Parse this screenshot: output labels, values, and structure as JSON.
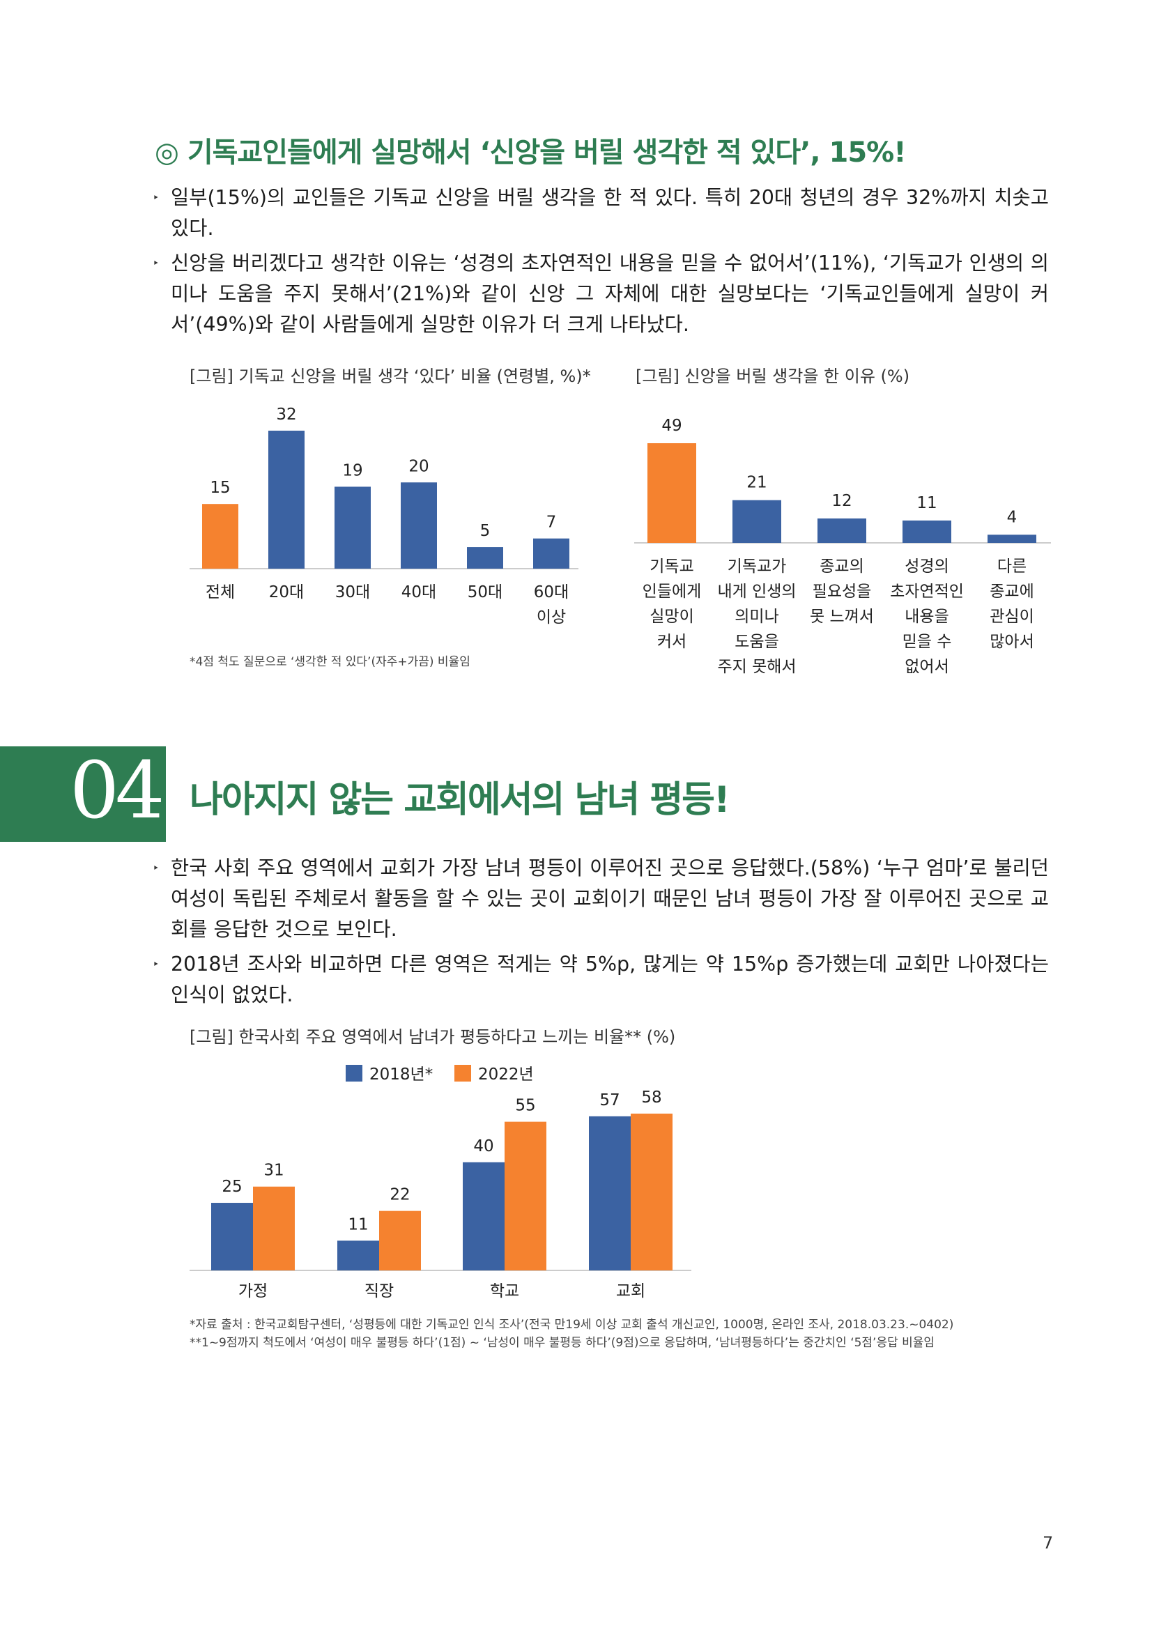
{
  "section3": {
    "heading": "◎ 기독교인들에게 실망해서 ‘신앙을 버릴 생각한 적 있다’, 15%!",
    "bullets": [
      "일부(15%)의 교인들은 기독교 신앙을 버릴 생각을 한 적 있다. 특히 20대 청년의 경우 32%까지 치솟고 있다.",
      "신앙을 버리겠다고 생각한 이유는 ‘성경의 초자연적인 내용을 믿을 수 없어서’(11%), ‘기독교가 인생의 의미나 도움을 주지 못해서’(21%)와 같이 신앙 그 자체에 대한 실망보다는 ‘기독교인들에게 실망이 커서’(49%)와 같이 사람들에게 실망한 이유가 더 크게 나타났다."
    ],
    "bullet_mark": "‣"
  },
  "chart_data": [
    {
      "type": "bar",
      "caption": "[그림] 기독교 신앙을 버릴 생각 ‘있다’ 비율 (연령별, %)*",
      "categories": [
        "전체",
        "20대",
        "30대",
        "40대",
        "50대",
        "60대\n이상"
      ],
      "values": [
        15,
        32,
        19,
        20,
        5,
        7
      ],
      "colors": [
        "#f5822f",
        "#3b62a2",
        "#3b62a2",
        "#3b62a2",
        "#3b62a2",
        "#3b62a2"
      ],
      "ylim": [
        0,
        35
      ],
      "note": "*4점 척도 질문으로 ‘생각한 적 있다’(자주+가끔) 비율임"
    },
    {
      "type": "bar",
      "caption": "[그림] 신앙을 버릴 생각을 한 이유 (%)",
      "categories": [
        "기독교\n인들에게\n실망이\n커서",
        "기독교가\n내게 인생의\n의미나\n도움을\n주지 못해서",
        "종교의\n필요성을\n못 느껴서",
        "성경의\n초자연적인\n내용을\n믿을 수\n없어서",
        "다른\n종교에\n관심이\n많아서"
      ],
      "values": [
        49,
        21,
        12,
        11,
        4
      ],
      "colors": [
        "#f5822f",
        "#3b62a2",
        "#3b62a2",
        "#3b62a2",
        "#3b62a2"
      ],
      "ylim": [
        0,
        55
      ]
    },
    {
      "type": "bar",
      "caption": "[그림] 한국사회 주요 영역에서 남녀가 평등하다고 느끼는 비율**  (%)",
      "categories": [
        "가정",
        "직장",
        "학교",
        "교회"
      ],
      "series": [
        {
          "name": "2018년*",
          "values": [
            25,
            11,
            40,
            57
          ],
          "color": "#3b62a2"
        },
        {
          "name": "2022년",
          "values": [
            31,
            22,
            55,
            58
          ],
          "color": "#f5822f"
        }
      ],
      "ylim": [
        0,
        62
      ],
      "legend": "top",
      "notes": [
        "*자료 출처 : 한국교회탐구센터, ‘성평등에 대한 기독교인 인식 조사’(전국 만19세 이상 교회 출석 개신교인, 1000명, 온라인 조사, 2018.03.23.~0402)",
        "**1~9점까지 척도에서 ‘여성이 매우 불평등 하다’(1점) ~ ‘남성이 매우 불평등 하다’(9점)으로 응답하며, ‘남녀평등하다’는 중간치인 ‘5점’응답 비율임"
      ]
    }
  ],
  "section4": {
    "number": "04",
    "title": "나아지지 않는 교회에서의 남녀 평등!",
    "bullets": [
      "한국 사회 주요 영역에서 교회가 가장 남녀 평등이 이루어진 곳으로 응답했다.(58%) ‘누구 엄마’로 불리던 여성이 독립된 주체로서 활동을 할 수 있는 곳이 교회이기 때문인 남녀 평등이 가장 잘 이루어진 곳으로 교회를 응답한 것으로 보인다.",
      "2018년 조사와 비교하면 다른 영역은 적게는 약 5%p, 많게는 약 15%p 증가했는데 교회만 나아졌다는 인식이 없었다."
    ]
  },
  "page_number": "7",
  "colors": {
    "accent": "#2e7d52",
    "blue": "#3b62a2",
    "orange": "#f5822f"
  }
}
